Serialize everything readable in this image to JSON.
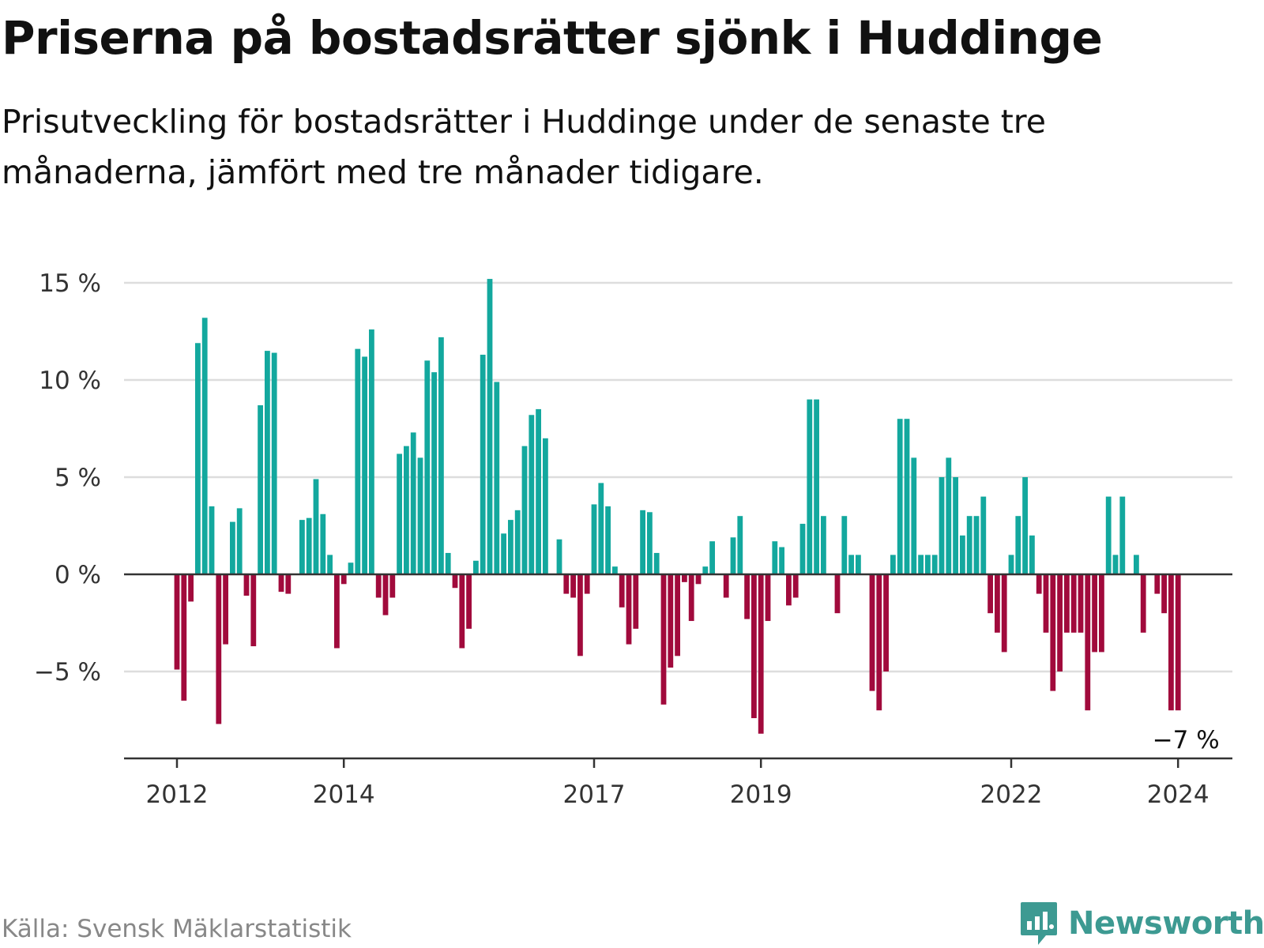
{
  "title": "Priserna på bostadsrätter sjönk i Huddinge",
  "subtitle": "Prisutveckling för bostadsrätter i Huddinge under de senaste tre månaderna, jämfört med tre månader tidigare.",
  "source": "Källa: Svensk Mäklarstatistik",
  "brand": {
    "name": "Newsworthy",
    "logo_icon": "bar-chart-speech-bubble-icon"
  },
  "colors": {
    "positive": "#13a89e",
    "negative": "#a10a3c",
    "grid": "#dddddd",
    "axis": "#333333",
    "brand": "#3d9a92"
  },
  "chart_data": {
    "type": "bar",
    "title": "Priserna på bostadsrätter sjönk i Huddinge",
    "xlabel": "",
    "ylabel": "",
    "ylim": [
      -9.2,
      15.4
    ],
    "yticks": [
      15,
      10,
      5,
      0,
      -5
    ],
    "ytick_labels": [
      "15 %",
      "10 %",
      "5 %",
      "0 %",
      "−5 %"
    ],
    "x_start": "2012-01",
    "xticks": [
      {
        "label": "2012",
        "index": 0
      },
      {
        "label": "2014",
        "index": 24
      },
      {
        "label": "2017",
        "index": 60
      },
      {
        "label": "2019",
        "index": 84
      },
      {
        "label": "2022",
        "index": 120
      },
      {
        "label": "2024",
        "index": 144
      }
    ],
    "annotation": {
      "label": "−7 %",
      "index": 144
    },
    "values": [
      -4.9,
      -6.5,
      -1.4,
      11.9,
      13.2,
      3.5,
      -7.7,
      -3.6,
      2.7,
      3.4,
      -1.1,
      -3.7,
      8.7,
      11.5,
      11.4,
      -0.9,
      -1.0,
      0.0,
      2.8,
      2.9,
      4.9,
      3.1,
      1.0,
      -3.8,
      -0.5,
      0.6,
      11.6,
      11.2,
      12.6,
      -1.2,
      -2.1,
      -1.2,
      6.2,
      6.6,
      7.3,
      6.0,
      11.0,
      10.4,
      12.2,
      1.1,
      -0.7,
      -3.8,
      -2.8,
      0.7,
      11.3,
      15.2,
      9.9,
      2.1,
      2.8,
      3.3,
      6.6,
      8.2,
      8.5,
      7.0,
      0.0,
      1.8,
      -1.0,
      -1.2,
      -4.2,
      -1.0,
      3.6,
      4.7,
      3.5,
      0.4,
      -1.7,
      -3.6,
      -2.8,
      3.3,
      3.2,
      1.1,
      -6.7,
      -4.8,
      -4.2,
      -0.4,
      -2.4,
      -0.5,
      0.4,
      1.7,
      0.0,
      -1.2,
      1.9,
      3.0,
      -2.3,
      -7.4,
      -8.2,
      -2.4,
      1.7,
      1.4,
      -1.6,
      -1.2,
      2.6,
      9.0,
      9.0,
      3.0,
      0.0,
      -2.0,
      3.0,
      1.0,
      1.0,
      0.0,
      -6.0,
      -7.0,
      -5.0,
      1.0,
      8.0,
      8.0,
      6.0,
      1.0,
      1.0,
      1.0,
      5.0,
      6.0,
      5.0,
      2.0,
      3.0,
      3.0,
      4.0,
      -2.0,
      -3.0,
      -4.0,
      1.0,
      3.0,
      5.0,
      2.0,
      -1.0,
      -3.0,
      -6.0,
      -5.0,
      -3.0,
      -3.0,
      -3.0,
      -7.0,
      -4.0,
      -4.0,
      4.0,
      1.0,
      4.0,
      0.0,
      1.0,
      -3.0,
      0.0,
      -1.0,
      -2.0,
      -7.0,
      -7.0
    ]
  }
}
